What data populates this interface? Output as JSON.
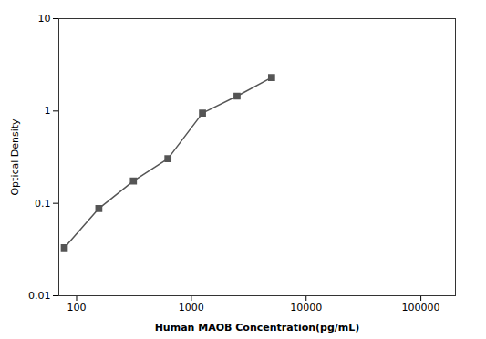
{
  "chart_data": {
    "type": "line",
    "xlabel": "Human MAOB Concentration(pg/mL)",
    "ylabel": "Optical Density",
    "x": [
      78.13,
      156.25,
      312.5,
      625,
      1250,
      2500,
      5000
    ],
    "values": [
      0.033,
      0.088,
      0.175,
      0.305,
      0.95,
      1.45,
      2.3
    ],
    "xlim": [
      70,
      200000
    ],
    "ylim": [
      0.01,
      10
    ],
    "xticks": [
      100,
      1000,
      10000,
      100000
    ],
    "yticks": [
      0.01,
      0.1,
      1,
      10
    ],
    "log": true,
    "grid": false,
    "color": "#555555",
    "marker": "square"
  }
}
